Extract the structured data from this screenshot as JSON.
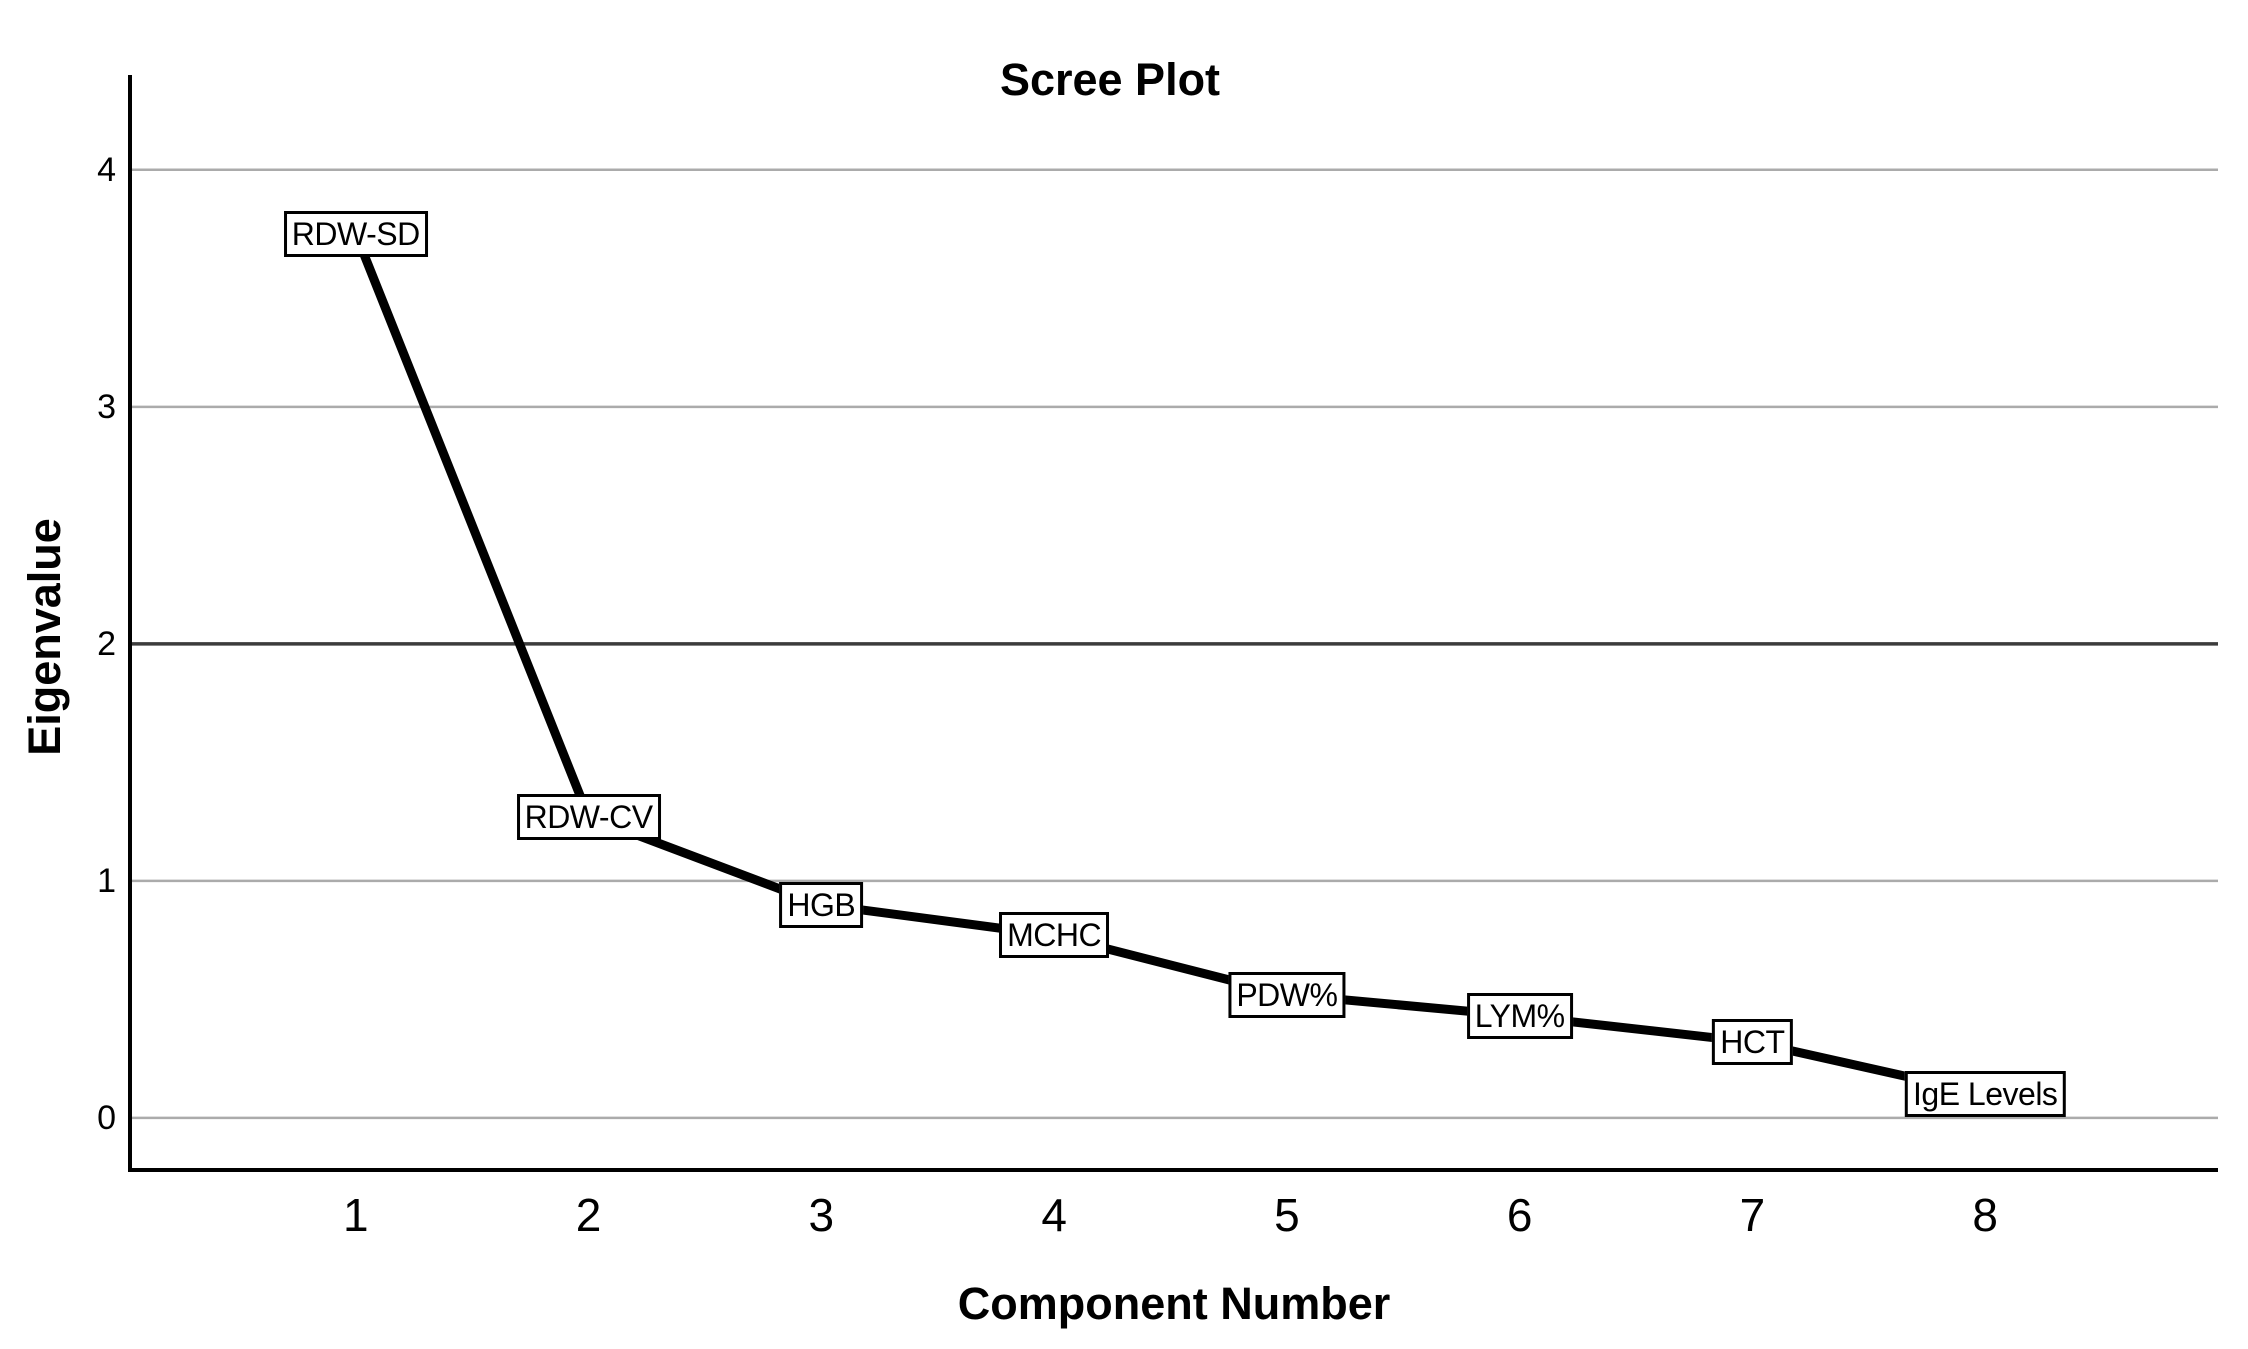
{
  "chart_data": {
    "type": "line",
    "title": "Scree Plot",
    "xlabel": "Component Number",
    "ylabel": "Eigenvalue",
    "x": [
      1,
      2,
      3,
      4,
      5,
      6,
      7,
      8
    ],
    "values": [
      3.73,
      1.27,
      0.9,
      0.77,
      0.52,
      0.43,
      0.32,
      0.1
    ],
    "point_labels": [
      "RDW-SD",
      "RDW-CV",
      "HGB",
      "MCHC",
      "PDW%",
      "LYM%",
      "HCT",
      "IgE Levels"
    ],
    "xticks": [
      "1",
      "2",
      "3",
      "4",
      "5",
      "6",
      "7",
      "8"
    ],
    "yticks": [
      "4",
      "3",
      "2",
      "1",
      "0"
    ],
    "ytick_values": [
      4,
      3,
      2,
      1,
      0
    ],
    "xlim": [
      0.03,
      9.0
    ],
    "ylim": [
      -0.22,
      4.4
    ],
    "grid": true,
    "emphasized_gridline_value": 2,
    "legend_position": "none",
    "colors": {
      "line": "#000000",
      "grid": "#ababab",
      "grid_emphasis": "#3c3c3c",
      "axis": "#000000",
      "label_box_bg": "#ffffff",
      "label_box_border": "#000000",
      "text": "#000000",
      "background": "#ffffff"
    }
  }
}
